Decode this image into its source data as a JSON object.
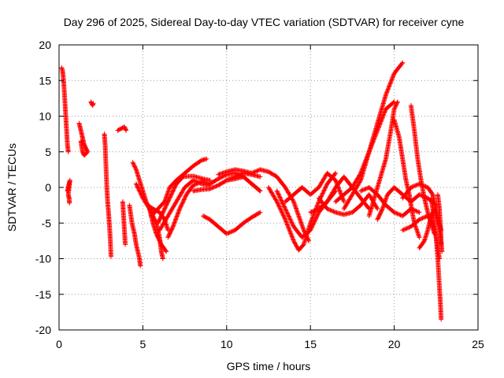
{
  "chart_data": {
    "type": "scatter",
    "title": "Day 296 of 2025, Sidereal Day-to-day VTEC variation (SDTVAR) for receiver cyne",
    "xlabel": "GPS time / hours",
    "ylabel": "SDTVAR / TECUs",
    "xlim": [
      0,
      25
    ],
    "ylim": [
      -20,
      20
    ],
    "xticks": [
      0,
      5,
      10,
      15,
      20,
      25
    ],
    "yticks": [
      -20,
      -15,
      -10,
      -5,
      0,
      5,
      10,
      15,
      20
    ],
    "grid": true,
    "marker": "+",
    "color": "#ff0000",
    "tracks": [
      [
        [
          0.15,
          16.8
        ],
        [
          0.2,
          16.5
        ],
        [
          0.25,
          15.5
        ],
        [
          0.3,
          14
        ],
        [
          0.35,
          12
        ],
        [
          0.4,
          10
        ],
        [
          0.45,
          8
        ],
        [
          0.5,
          6
        ],
        [
          0.55,
          5
        ]
      ],
      [
        [
          0.5,
          -0.5
        ],
        [
          0.55,
          0
        ],
        [
          0.6,
          0.5
        ],
        [
          0.65,
          1
        ],
        [
          0.55,
          -1
        ],
        [
          0.6,
          -1.5
        ],
        [
          0.62,
          -2.2
        ]
      ],
      [
        [
          1.2,
          9
        ],
        [
          1.3,
          8
        ],
        [
          1.4,
          7
        ],
        [
          1.5,
          6
        ],
        [
          1.6,
          5.5
        ],
        [
          1.7,
          5
        ],
        [
          1.5,
          4.5
        ],
        [
          1.4,
          5
        ],
        [
          1.3,
          6.5
        ]
      ],
      [
        [
          1.9,
          12
        ],
        [
          2.0,
          11.5
        ],
        [
          2.05,
          11.8
        ]
      ],
      [
        [
          2.7,
          7.5
        ],
        [
          2.75,
          6
        ],
        [
          2.8,
          3
        ],
        [
          2.85,
          0
        ],
        [
          2.9,
          -2
        ],
        [
          2.95,
          -3.5
        ],
        [
          3.0,
          -5
        ],
        [
          3.05,
          -7
        ],
        [
          3.1,
          -9.7
        ]
      ],
      [
        [
          3.5,
          8
        ],
        [
          3.9,
          8.5
        ],
        [
          4.0,
          8
        ]
      ],
      [
        [
          3.8,
          -2
        ],
        [
          3.85,
          -4
        ],
        [
          3.9,
          -6
        ],
        [
          3.95,
          -8
        ]
      ],
      [
        [
          4.2,
          -2.5
        ],
        [
          4.35,
          -5
        ],
        [
          4.5,
          -6.5
        ],
        [
          4.6,
          -8
        ],
        [
          4.8,
          -10
        ],
        [
          4.85,
          -11
        ]
      ],
      [
        [
          4.4,
          3.5
        ],
        [
          4.6,
          2.5
        ],
        [
          4.8,
          1
        ],
        [
          5.0,
          -0.5
        ],
        [
          5.2,
          -2
        ],
        [
          5.5,
          -3.5
        ],
        [
          5.8,
          -5
        ],
        [
          6.0,
          -7
        ],
        [
          6.1,
          -9
        ],
        [
          6.2,
          -10
        ]
      ],
      [
        [
          4.6,
          0.5
        ],
        [
          5.0,
          -1.5
        ],
        [
          5.4,
          -3
        ],
        [
          5.6,
          -5
        ],
        [
          5.8,
          -6.5
        ],
        [
          6.1,
          -8
        ],
        [
          6.4,
          -9
        ]
      ],
      [
        [
          5.5,
          -4
        ],
        [
          5.9,
          -3
        ],
        [
          6.3,
          -2
        ],
        [
          6.6,
          0
        ],
        [
          7.0,
          1
        ],
        [
          7.5,
          2
        ],
        [
          8.0,
          3
        ],
        [
          8.5,
          3.8
        ],
        [
          8.8,
          4
        ]
      ],
      [
        [
          5.9,
          -5
        ],
        [
          6.2,
          -3.5
        ],
        [
          6.6,
          -1.5
        ],
        [
          7.0,
          0.5
        ],
        [
          7.4,
          1.5
        ],
        [
          8.0,
          1.6
        ],
        [
          8.6,
          1.2
        ],
        [
          9.0,
          1
        ]
      ],
      [
        [
          6.0,
          -6
        ],
        [
          6.5,
          -4
        ],
        [
          7.0,
          -2
        ],
        [
          7.5,
          0
        ],
        [
          8.0,
          1
        ],
        [
          8.5,
          0.5
        ],
        [
          9.0,
          0.3
        ]
      ],
      [
        [
          6.5,
          -7
        ],
        [
          6.8,
          -5.5
        ],
        [
          7.2,
          -3
        ],
        [
          7.6,
          -1
        ],
        [
          8.0,
          0.3
        ],
        [
          8.5,
          0.8
        ]
      ],
      [
        [
          5.3,
          -2.5
        ],
        [
          5.6,
          -3
        ],
        [
          6.0,
          -3.5
        ],
        [
          6.3,
          -4.5
        ],
        [
          6.5,
          -6
        ]
      ],
      [
        [
          8.0,
          -0.5
        ],
        [
          8.5,
          -0.3
        ],
        [
          9.0,
          -0.2
        ],
        [
          9.5,
          0.3
        ],
        [
          10.0,
          1
        ],
        [
          10.5,
          1.5
        ],
        [
          11.0,
          2
        ],
        [
          11.5,
          1.8
        ],
        [
          12.0,
          1.5
        ]
      ],
      [
        [
          8.5,
          0.8
        ],
        [
          9.0,
          0.5
        ],
        [
          9.5,
          1.2
        ],
        [
          10.0,
          1.8
        ],
        [
          10.5,
          2
        ],
        [
          11.0,
          1.5
        ],
        [
          11.5,
          0.5
        ],
        [
          12.0,
          -0.5
        ]
      ],
      [
        [
          9.5,
          1.8
        ],
        [
          10.0,
          2.2
        ],
        [
          10.5,
          2.5
        ],
        [
          11.0,
          2.3
        ],
        [
          11.5,
          2
        ],
        [
          12.0,
          2.5
        ],
        [
          12.5,
          2.2
        ],
        [
          13.0,
          1.5
        ],
        [
          13.5,
          0
        ],
        [
          14.0,
          -2
        ],
        [
          14.3,
          -4
        ],
        [
          14.6,
          -6
        ],
        [
          14.9,
          -7.5
        ]
      ],
      [
        [
          10.0,
          1
        ],
        [
          10.5,
          1.2
        ],
        [
          11.0,
          1.5
        ],
        [
          11.5,
          0.5
        ],
        [
          12.0,
          -0.5
        ]
      ],
      [
        [
          8.6,
          -4
        ],
        [
          9.0,
          -4.5
        ],
        [
          9.5,
          -5.5
        ],
        [
          10.0,
          -6.5
        ],
        [
          10.5,
          -6
        ],
        [
          11.0,
          -5
        ],
        [
          11.5,
          -4.2
        ],
        [
          12.0,
          -3.5
        ]
      ],
      [
        [
          12.5,
          0
        ],
        [
          13.0,
          -2
        ],
        [
          13.5,
          -4.5
        ],
        [
          14.0,
          -7.5
        ],
        [
          14.3,
          -8.8
        ],
        [
          14.6,
          -8
        ],
        [
          15.0,
          -5
        ],
        [
          15.5,
          -2
        ],
        [
          16.0,
          0.5
        ],
        [
          16.5,
          2
        ]
      ],
      [
        [
          13.0,
          -0.5
        ],
        [
          13.5,
          -3
        ],
        [
          14.0,
          -5.5
        ],
        [
          14.5,
          -7
        ],
        [
          15.0,
          -6
        ],
        [
          15.5,
          -3.5
        ],
        [
          16.0,
          -2
        ],
        [
          16.5,
          -0.5
        ]
      ],
      [
        [
          13.5,
          -2
        ],
        [
          14.0,
          -1
        ],
        [
          14.5,
          0
        ],
        [
          15.0,
          -1
        ],
        [
          15.5,
          0
        ],
        [
          16.0,
          2
        ],
        [
          16.5,
          1
        ],
        [
          17.0,
          -2
        ]
      ],
      [
        [
          15.0,
          -3.5
        ],
        [
          15.5,
          -3
        ],
        [
          16.0,
          -2
        ],
        [
          16.5,
          0
        ],
        [
          17.0,
          1.5
        ],
        [
          17.5,
          0
        ],
        [
          18.0,
          -1.5
        ],
        [
          18.5,
          -3
        ]
      ],
      [
        [
          15.5,
          -1.5
        ],
        [
          16.0,
          -3
        ],
        [
          16.5,
          -3.5
        ],
        [
          17.0,
          -3.8
        ],
        [
          17.5,
          -3.5
        ],
        [
          18.0,
          -2.5
        ],
        [
          18.5,
          -1
        ],
        [
          19.0,
          -3
        ]
      ],
      [
        [
          16.5,
          -2
        ],
        [
          17.0,
          -1
        ],
        [
          17.5,
          0
        ],
        [
          18.0,
          2
        ],
        [
          18.5,
          5
        ],
        [
          19.0,
          9
        ],
        [
          19.5,
          13
        ],
        [
          20.0,
          16
        ],
        [
          20.5,
          17.5
        ]
      ],
      [
        [
          17.0,
          -3
        ],
        [
          17.5,
          -1
        ],
        [
          18.0,
          1
        ],
        [
          18.5,
          5
        ],
        [
          19.0,
          8
        ],
        [
          19.5,
          11
        ],
        [
          20.0,
          12
        ]
      ],
      [
        [
          18.5,
          -4
        ],
        [
          19.0,
          0
        ],
        [
          19.5,
          4
        ],
        [
          19.8,
          8
        ],
        [
          20.0,
          11
        ],
        [
          20.2,
          12
        ]
      ],
      [
        [
          18.0,
          -0.5
        ],
        [
          18.5,
          0
        ],
        [
          19.0,
          -1
        ],
        [
          19.5,
          -2.5
        ],
        [
          20.0,
          -3.5
        ],
        [
          20.5,
          -4
        ],
        [
          21.0,
          -3
        ],
        [
          21.5,
          -3.5
        ]
      ],
      [
        [
          19.0,
          -4.5
        ],
        [
          19.3,
          -3
        ],
        [
          19.6,
          -1
        ],
        [
          20.0,
          0
        ],
        [
          20.5,
          -1
        ],
        [
          21.0,
          -2
        ],
        [
          21.5,
          -1
        ],
        [
          22.0,
          -1.5
        ],
        [
          22.5,
          -2.5
        ]
      ],
      [
        [
          20.0,
          9.5
        ],
        [
          20.3,
          7
        ],
        [
          20.5,
          4
        ],
        [
          20.7,
          1
        ],
        [
          20.9,
          -1
        ],
        [
          21.0,
          -2.5
        ],
        [
          21.2,
          -5
        ],
        [
          21.5,
          -7
        ]
      ],
      [
        [
          21.0,
          11.5
        ],
        [
          21.2,
          8
        ],
        [
          21.4,
          4
        ],
        [
          21.6,
          1
        ],
        [
          21.8,
          -1.5
        ],
        [
          22.0,
          -3.5
        ],
        [
          22.2,
          -5
        ],
        [
          22.4,
          -6.5
        ]
      ],
      [
        [
          20.5,
          -1.5
        ],
        [
          21.0,
          0
        ],
        [
          21.5,
          0.5
        ],
        [
          22.0,
          0
        ],
        [
          22.3,
          -1
        ],
        [
          22.5,
          -3
        ],
        [
          22.7,
          -5.5
        ],
        [
          22.8,
          -8
        ]
      ],
      [
        [
          20.5,
          -6
        ],
        [
          21.0,
          -5.5
        ],
        [
          21.5,
          -4.5
        ],
        [
          22.0,
          -4
        ],
        [
          22.3,
          -5
        ],
        [
          22.5,
          -7
        ],
        [
          22.7,
          -10
        ]
      ],
      [
        [
          21.5,
          -8.5
        ],
        [
          21.8,
          -7.5
        ],
        [
          22.0,
          -6
        ],
        [
          22.2,
          -4
        ],
        [
          22.4,
          -3
        ],
        [
          22.6,
          -4.5
        ],
        [
          22.8,
          -6
        ]
      ],
      [
        [
          22.2,
          -1.5
        ],
        [
          22.3,
          -3
        ],
        [
          22.4,
          -5
        ],
        [
          22.5,
          -7
        ],
        [
          22.6,
          -10
        ],
        [
          22.7,
          -14
        ],
        [
          22.75,
          -16
        ],
        [
          22.8,
          -18.5
        ]
      ],
      [
        [
          22.6,
          -1
        ],
        [
          22.7,
          -3
        ],
        [
          22.75,
          -5
        ],
        [
          22.8,
          -7.5
        ],
        [
          22.85,
          -9
        ]
      ]
    ]
  }
}
